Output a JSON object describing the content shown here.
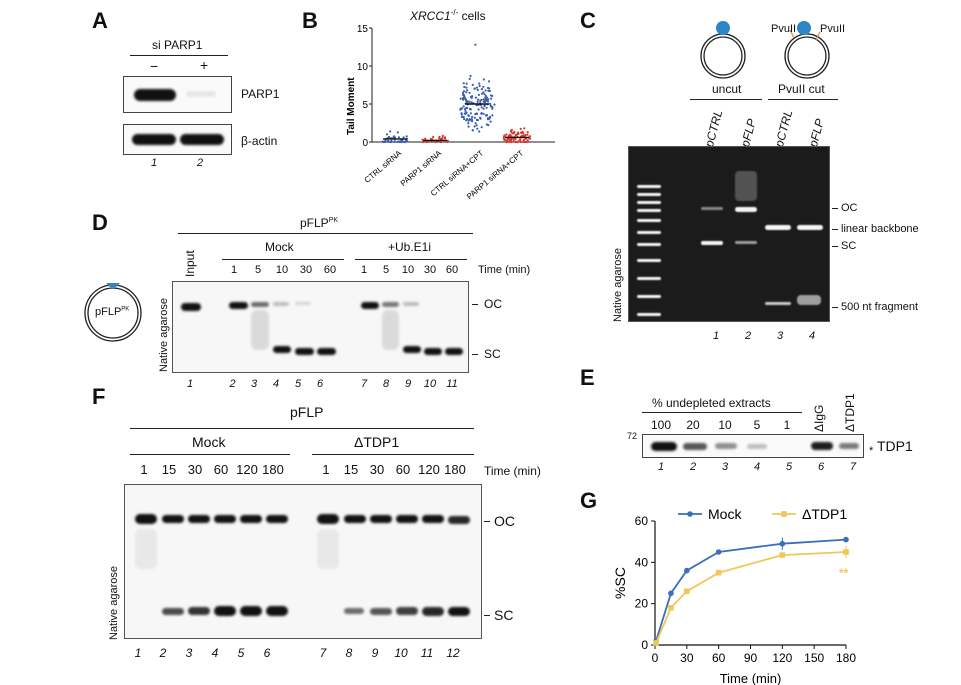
{
  "panels": {
    "A": {
      "label": "A",
      "header": "si PARP1",
      "conditions": [
        "−",
        "+"
      ],
      "blots": [
        "PARP1",
        "β-actin"
      ],
      "lanes": [
        "1",
        "2"
      ]
    },
    "B": {
      "label": "B",
      "title_gene": "XRCC1",
      "title_sup": "-/-",
      "title_rest": " cells",
      "ylabel": "Tail Moment",
      "yticks": [
        "0",
        "5",
        "10",
        "15"
      ],
      "categories": [
        "CTRL siRNA",
        "PARP1 siRNA",
        "CTRL siRNA+CPT",
        "PARP1 siRNA+CPT"
      ]
    },
    "C": {
      "label": "C",
      "site1": "PvuII",
      "site2": "PvuII",
      "groups": [
        "uncut",
        "PvuII cut"
      ],
      "lane_names": [
        "pCTRL",
        "pFLP",
        "pCTRL",
        "pFLP"
      ],
      "side": "Native agarose",
      "bands": [
        "OC",
        "linear backbone",
        "SC",
        "500 nt fragment"
      ],
      "lanes": [
        "1",
        "2",
        "3",
        "4"
      ]
    },
    "D": {
      "label": "D",
      "title": "pFLP",
      "title_sup": "PK",
      "plasmid": "pFLP",
      "plasmid_sup": "PK",
      "input": "Input",
      "groups": [
        "Mock",
        "+Ub.E1i"
      ],
      "times": [
        "1",
        "5",
        "10",
        "30",
        "60",
        "1",
        "5",
        "10",
        "30",
        "60"
      ],
      "time_label": "Time (min)",
      "side": "Native agarose",
      "bands": [
        "OC",
        "SC"
      ],
      "lanes": [
        "1",
        "2",
        "3",
        "4",
        "5",
        "6",
        "7",
        "8",
        "9",
        "10",
        "11"
      ]
    },
    "E": {
      "label": "E",
      "header": "% undepleted extracts",
      "lane_heads": [
        "100",
        "20",
        "10",
        "5",
        "1",
        "ΔIgG",
        "ΔTDP1"
      ],
      "marker": "72",
      "asterisk": "*",
      "band": "TDP1",
      "lanes": [
        "1",
        "2",
        "3",
        "4",
        "5",
        "6",
        "7"
      ]
    },
    "F": {
      "label": "F",
      "title": "pFLP",
      "groups": [
        "Mock",
        "ΔTDP1"
      ],
      "times": [
        "1",
        "15",
        "30",
        "60",
        "120",
        "180",
        "1",
        "15",
        "30",
        "60",
        "120",
        "180"
      ],
      "time_label": "Time (min)",
      "side": "Native agarose",
      "bands": [
        "OC",
        "SC"
      ],
      "lanes": [
        "1",
        "2",
        "3",
        "4",
        "5",
        "6",
        "7",
        "8",
        "9",
        "10",
        "11",
        "12"
      ]
    },
    "G": {
      "label": "G",
      "significance": "**"
    }
  },
  "chart_data": {
    "type": "line",
    "title": "",
    "xlabel": "Time (min)",
    "ylabel": "%SC",
    "xlim": [
      0,
      180
    ],
    "ylim": [
      0,
      60
    ],
    "xticks": [
      "0",
      "30",
      "60",
      "90",
      "120",
      "150",
      "180"
    ],
    "yticks": [
      "0",
      "20",
      "40",
      "60"
    ],
    "grid": false,
    "legend": "top",
    "x": [
      1,
      15,
      30,
      60,
      120,
      180
    ],
    "series": [
      {
        "name": "Mock",
        "color": "#3a6fba",
        "values": [
          2,
          25,
          36,
          45,
          49,
          51
        ]
      },
      {
        "name": "ΔTDP1",
        "color": "#f0c75a",
        "values": [
          1,
          18,
          26,
          35,
          43.5,
          45
        ]
      }
    ]
  }
}
